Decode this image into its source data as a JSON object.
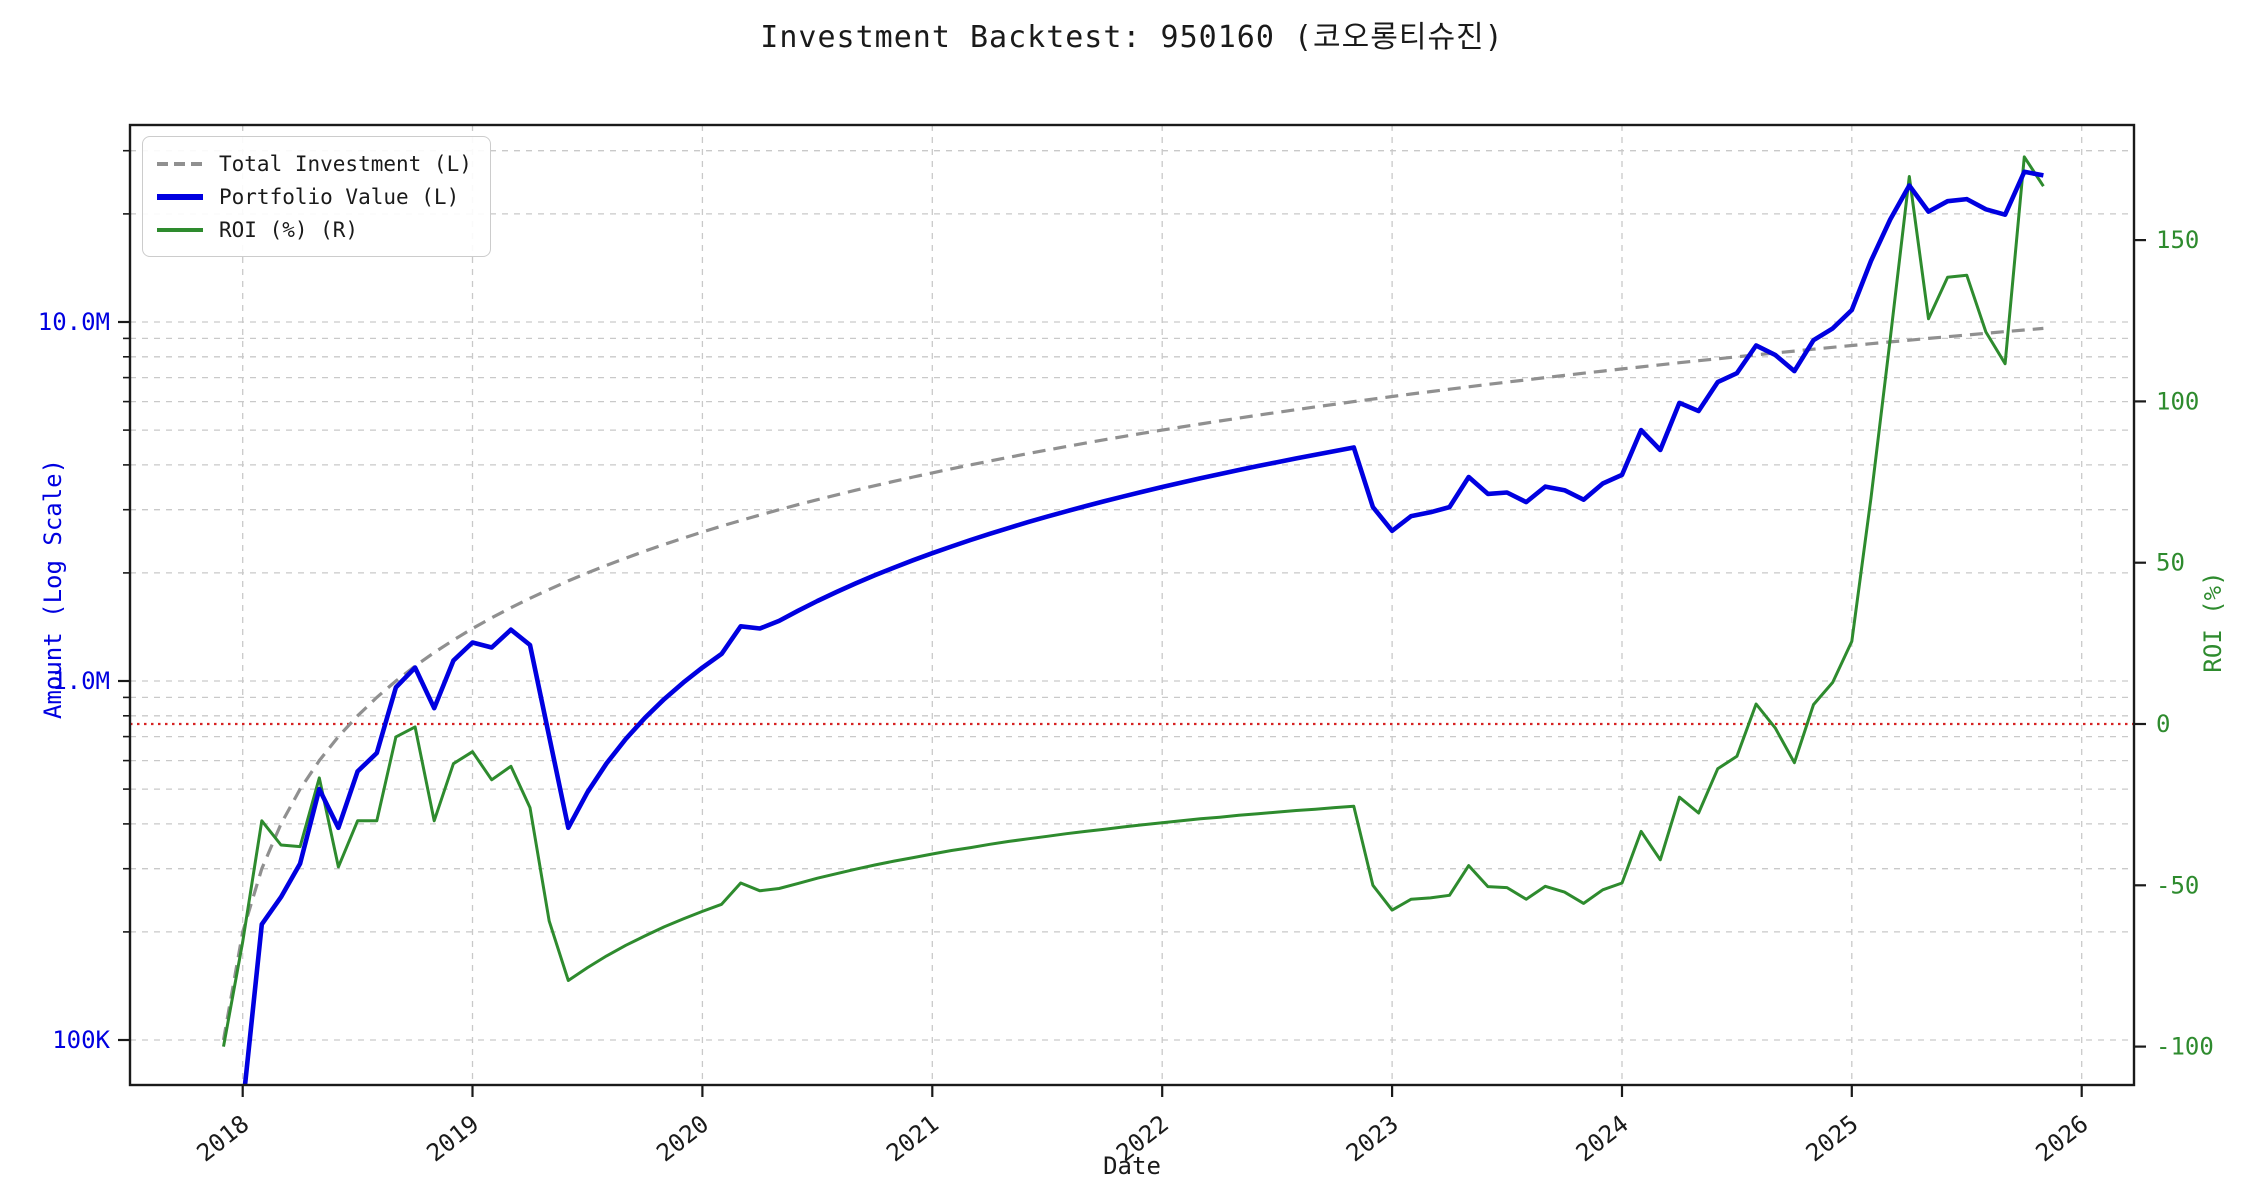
{
  "title": "Investment Backtest: 950160 (코오롱티슈진)",
  "axes": {
    "x_label": "Date",
    "left_label": "Amount (Log Scale)",
    "right_label": "ROI (%)",
    "left_tick_labels": [
      "100K",
      "1.0M",
      "10.0M"
    ],
    "right_tick_labels": [
      "-100",
      "-50",
      "0",
      "50",
      "100",
      "150"
    ],
    "x_tick_labels": [
      "2018",
      "2019",
      "2020",
      "2021",
      "2022",
      "2023",
      "2024",
      "2025",
      "2026"
    ]
  },
  "legend": {
    "items": [
      {
        "label": "Total Investment (L)",
        "style": "dashed",
        "color": "#909090"
      },
      {
        "label": "Portfolio Value (L)",
        "style": "solid-thick",
        "color": "#0000e0"
      },
      {
        "label": "ROI (%) (R)",
        "style": "solid",
        "color": "#2e8b2e"
      }
    ]
  },
  "colors": {
    "total_investment": "#909090",
    "portfolio_value": "#0000e0",
    "roi": "#2e8b2e",
    "zero_roi_line": "#d62222",
    "grid": "#c9c9c9",
    "spine": "#1a1a1a",
    "left_axis_text": "#0000e0",
    "right_axis_text": "#2e8b2e",
    "x_axis_text": "#1a1a1a"
  },
  "chart_data": {
    "type": "line",
    "x_unit": "month",
    "x": [
      "2017-12",
      "2018-01",
      "2018-02",
      "2018-03",
      "2018-04",
      "2018-05",
      "2018-06",
      "2018-07",
      "2018-08",
      "2018-09",
      "2018-10",
      "2018-11",
      "2018-12",
      "2019-01",
      "2019-02",
      "2019-03",
      "2019-04",
      "2019-05",
      "2019-06",
      "2019-07",
      "2019-08",
      "2019-09",
      "2019-10",
      "2019-11",
      "2019-12",
      "2020-01",
      "2020-02",
      "2020-03",
      "2020-04",
      "2020-05",
      "2020-06",
      "2020-07",
      "2020-08",
      "2020-09",
      "2020-10",
      "2020-11",
      "2020-12",
      "2021-01",
      "2021-02",
      "2021-03",
      "2021-04",
      "2021-05",
      "2021-06",
      "2021-07",
      "2021-08",
      "2021-09",
      "2021-10",
      "2021-11",
      "2021-12",
      "2022-01",
      "2022-02",
      "2022-03",
      "2022-04",
      "2022-05",
      "2022-06",
      "2022-07",
      "2022-08",
      "2022-09",
      "2022-10",
      "2022-11",
      "2022-12",
      "2023-01",
      "2023-02",
      "2023-03",
      "2023-04",
      "2023-05",
      "2023-06",
      "2023-07",
      "2023-08",
      "2023-09",
      "2023-10",
      "2023-11",
      "2023-12",
      "2024-01",
      "2024-02",
      "2024-03",
      "2024-04",
      "2024-05",
      "2024-06",
      "2024-07",
      "2024-08",
      "2024-09",
      "2024-10",
      "2024-11",
      "2024-12",
      "2025-01",
      "2025-02",
      "2025-03",
      "2025-04",
      "2025-05",
      "2025-06",
      "2025-07",
      "2025-08",
      "2025-09",
      "2025-10",
      "2025-11"
    ],
    "series": [
      {
        "name": "Total Investment (L)",
        "axis": "left",
        "unit": "KRW millions",
        "values": [
          0.1,
          0.2,
          0.3,
          0.4,
          0.5,
          0.6,
          0.7,
          0.8,
          0.9,
          1.0,
          1.1,
          1.2,
          1.3,
          1.4,
          1.5,
          1.6,
          1.7,
          1.8,
          1.9,
          2.0,
          2.1,
          2.2,
          2.3,
          2.4,
          2.5,
          2.6,
          2.7,
          2.8,
          2.9,
          3.0,
          3.1,
          3.2,
          3.3,
          3.4,
          3.5,
          3.6,
          3.7,
          3.8,
          3.9,
          4.0,
          4.1,
          4.2,
          4.3,
          4.4,
          4.5,
          4.6,
          4.7,
          4.8,
          4.9,
          5.0,
          5.1,
          5.2,
          5.3,
          5.4,
          5.5,
          5.6,
          5.7,
          5.8,
          5.9,
          6.0,
          6.1,
          6.2,
          6.3,
          6.4,
          6.5,
          6.6,
          6.7,
          6.8,
          6.9,
          7.0,
          7.1,
          7.2,
          7.3,
          7.4,
          7.5,
          7.6,
          7.7,
          7.8,
          7.9,
          8.0,
          8.1,
          8.2,
          8.3,
          8.4,
          8.5,
          8.6,
          8.7,
          8.8,
          8.9,
          9.0,
          9.1,
          9.2,
          9.3,
          9.4,
          9.5,
          9.6
        ]
      },
      {
        "name": "Portfolio Value (L)",
        "axis": "left",
        "unit": "KRW millions",
        "values": [
          null,
          0.065,
          0.21,
          0.25,
          0.31,
          0.5,
          0.39,
          0.56,
          0.63,
          0.96,
          1.09,
          0.84,
          1.14,
          1.28,
          1.24,
          1.39,
          1.26,
          0.7,
          0.39,
          0.49,
          0.59,
          0.69,
          0.79,
          0.89,
          0.99,
          1.09,
          1.19,
          1.42,
          1.4,
          1.47,
          1.57,
          1.67,
          1.77,
          1.87,
          1.97,
          2.07,
          2.17,
          2.27,
          2.37,
          2.47,
          2.57,
          2.67,
          2.77,
          2.87,
          2.97,
          3.07,
          3.17,
          3.27,
          3.37,
          3.47,
          3.57,
          3.67,
          3.77,
          3.87,
          3.97,
          4.07,
          4.17,
          4.27,
          4.37,
          4.47,
          3.05,
          2.62,
          2.88,
          2.95,
          3.05,
          3.7,
          3.32,
          3.35,
          3.15,
          3.48,
          3.4,
          3.2,
          3.55,
          3.75,
          5.0,
          4.4,
          5.95,
          5.65,
          6.8,
          7.2,
          8.6,
          8.1,
          7.3,
          8.9,
          9.6,
          10.8,
          14.8,
          19.3,
          24.0,
          20.3,
          21.7,
          22.0,
          20.6,
          19.9,
          26.2,
          25.6
        ]
      },
      {
        "name": "ROI (%) (R)",
        "axis": "right",
        "unit": "%",
        "values": [
          -100.0,
          -67.5,
          -30.0,
          -37.5,
          -38.0,
          -16.7,
          -44.3,
          -30.0,
          -30.0,
          -4.0,
          -0.9,
          -30.0,
          -12.3,
          -8.6,
          -17.3,
          -13.1,
          -25.9,
          -61.1,
          -79.5,
          -75.5,
          -71.9,
          -68.6,
          -65.7,
          -62.9,
          -60.4,
          -58.1,
          -55.9,
          -49.3,
          -51.7,
          -51.0,
          -49.4,
          -47.8,
          -46.4,
          -45.0,
          -43.7,
          -42.5,
          -41.4,
          -40.3,
          -39.2,
          -38.3,
          -37.3,
          -36.4,
          -35.6,
          -34.8,
          -34.0,
          -33.3,
          -32.6,
          -31.9,
          -31.2,
          -30.6,
          -30.0,
          -29.4,
          -28.9,
          -28.3,
          -27.8,
          -27.3,
          -26.8,
          -26.4,
          -25.9,
          -25.5,
          -50.0,
          -57.7,
          -54.3,
          -53.9,
          -53.1,
          -43.9,
          -50.4,
          -50.7,
          -54.3,
          -50.3,
          -52.1,
          -55.6,
          -51.4,
          -49.3,
          -33.3,
          -42.1,
          -22.7,
          -27.6,
          -13.9,
          -10.0,
          6.2,
          -1.2,
          -12.0,
          6.0,
          12.9,
          25.6,
          70.1,
          119.3,
          169.7,
          125.6,
          138.5,
          139.1,
          121.5,
          111.7,
          175.8,
          166.7
        ]
      }
    ],
    "left_axis": {
      "scale": "log",
      "ticks": [
        0.1,
        1.0,
        10.0
      ],
      "tick_labels": [
        "100K",
        "1.0M",
        "10.0M"
      ],
      "range_millions": [
        0.073,
        36.0
      ]
    },
    "right_axis": {
      "scale": "linear",
      "ticks": [
        -100,
        -50,
        0,
        50,
        100,
        150
      ],
      "range": [
        -115.8,
        187.0
      ]
    },
    "x_axis": {
      "year_ticks": [
        "2018",
        "2019",
        "2020",
        "2021",
        "2022",
        "2023",
        "2024",
        "2025",
        "2026"
      ]
    },
    "annotations": [
      {
        "type": "hline",
        "axis": "right",
        "value": 0,
        "style": "dotted",
        "color": "#d62222"
      }
    ],
    "grid": true,
    "legend_position": "upper left"
  }
}
